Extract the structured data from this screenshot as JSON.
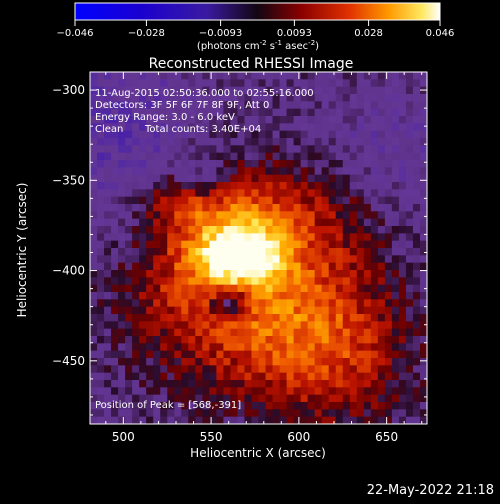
{
  "colorbar": {
    "ticks": [
      "-0.046",
      "-0.028",
      "-0.0093",
      "0.0093",
      "0.028",
      "0.046"
    ],
    "unit_label": "(photons cm",
    "unit_sup1": "-2",
    "unit_mid": " s",
    "unit_sup2": "-1",
    "unit_mid2": " asec",
    "unit_sup3": "-2",
    "unit_end": ")"
  },
  "chart_data": {
    "type": "heatmap",
    "title": "Reconstructed RHESSI Image",
    "xlabel": "Heliocentric X (arcsec)",
    "ylabel": "Heliocentric Y (arcsec)",
    "xlim": [
      481,
      673
    ],
    "ylim": [
      -485,
      -290
    ],
    "xticks": [
      500,
      550,
      600,
      650
    ],
    "yticks": [
      -300,
      -350,
      -400,
      -450
    ],
    "xtick_labels": [
      "500",
      "550",
      "600",
      "650"
    ],
    "ytick_labels": [
      "−300",
      "−350",
      "−400",
      "−450"
    ],
    "zlim": [
      -0.046,
      0.046
    ],
    "colormap": "RHESSI red-temperature with blue/purple negatives",
    "peak": [
      568,
      -391
    ],
    "annotations": {
      "line1": "11-Aug-2015 02:50:36.000 to 02:55:16.000",
      "line2": "Detectors: 3F 5F 6F 7F 8F 9F, Att 0",
      "line3": "Energy Range: 3.0 - 6.0 keV",
      "line4a": "Clean",
      "line4b": "Total counts: 3.40E+04",
      "peak_label": "Position of Peak = [568,-391]"
    }
  },
  "footer": {
    "timestamp": "22-May-2022 21:18"
  }
}
